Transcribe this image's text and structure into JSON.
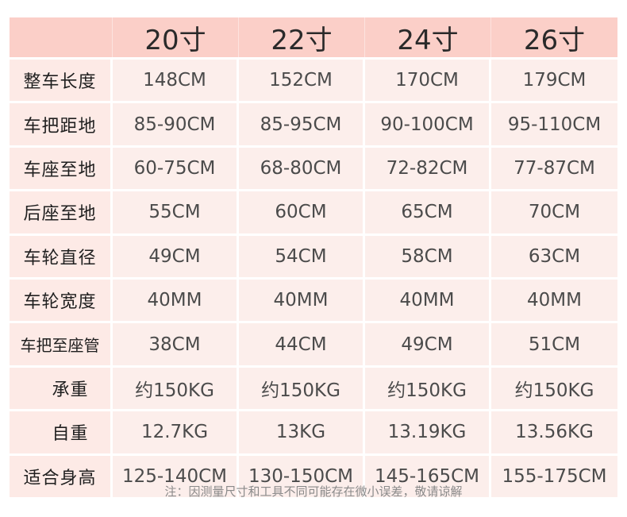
{
  "table": {
    "headers": [
      "",
      "20寸",
      "22寸",
      "24寸",
      "26寸"
    ],
    "rows": [
      {
        "label": "整车长度",
        "values": [
          "148CM",
          "152CM",
          "170CM",
          "179CM"
        ]
      },
      {
        "label": "车把距地",
        "values": [
          "85-90CM",
          "85-95CM",
          "90-100CM",
          "95-110CM"
        ]
      },
      {
        "label": "车座至地",
        "values": [
          "60-75CM",
          "68-80CM",
          "72-82CM",
          "77-87CM"
        ]
      },
      {
        "label": "后座至地",
        "values": [
          "55CM",
          "60CM",
          "65CM",
          "70CM"
        ]
      },
      {
        "label": "车轮直径",
        "values": [
          "49CM",
          "54CM",
          "58CM",
          "63CM"
        ]
      },
      {
        "label": "车轮宽度",
        "values": [
          "40MM",
          "40MM",
          "40MM",
          "40MM"
        ]
      },
      {
        "label": "车把至座管",
        "values": [
          "38CM",
          "44CM",
          "49CM",
          "51CM"
        ]
      },
      {
        "label": "承重",
        "values": [
          "约150KG",
          "约150KG",
          "约150KG",
          "约150KG"
        ]
      },
      {
        "label": "自重",
        "values": [
          "12.7KG",
          "13KG",
          "13.19KG",
          "13.56KG"
        ]
      },
      {
        "label": "适合身高",
        "values": [
          "125-140CM",
          "130-150CM",
          "145-165CM",
          "155-175CM"
        ]
      }
    ]
  },
  "note": "注：因测量尺寸和工具不同可能存在微小误差，敬请谅解",
  "colors": {
    "header_bg": "#fbcfc8",
    "row_bg": "#fceeeb",
    "text": "#4b4b4b"
  }
}
